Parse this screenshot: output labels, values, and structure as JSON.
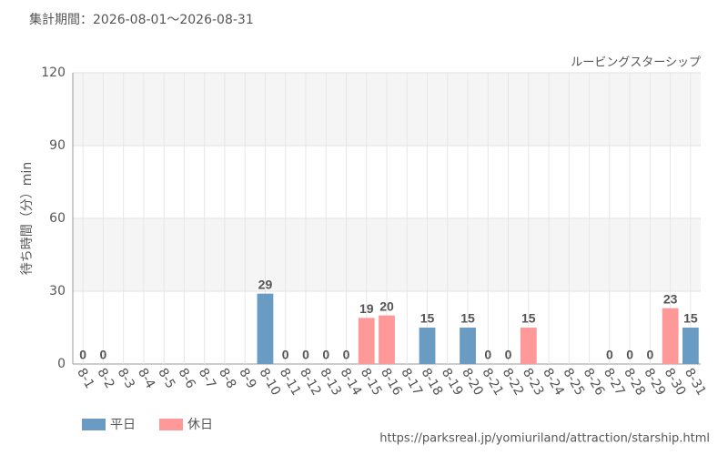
{
  "chart_data": {
    "type": "bar",
    "title": "集計期間：2026-08-01～2026-08-31",
    "subtitle": "ルービングスターシップ",
    "y_label": "待ち時間（分）min",
    "source": "https://parksreal.jp/yomiuriland/attraction/starship.html",
    "categories": [
      "8-1",
      "8-2",
      "8-3",
      "8-4",
      "8-5",
      "8-6",
      "8-7",
      "8-8",
      "8-9",
      "8-10",
      "8-11",
      "8-12",
      "8-13",
      "8-14",
      "8-15",
      "8-16",
      "8-17",
      "8-18",
      "8-19",
      "8-20",
      "8-21",
      "8-22",
      "8-23",
      "8-24",
      "8-25",
      "8-26",
      "8-27",
      "8-28",
      "8-29",
      "8-30",
      "8-31"
    ],
    "category_colors": [
      "#ff8080",
      "#ff8080",
      "#555555",
      "#555555",
      "#555555",
      "#555555",
      "#555555",
      "#ff8080",
      "#ff8080",
      "#555555",
      "#ff8080",
      "#555555",
      "#555555",
      "#555555",
      "#ff8080",
      "#ff8080",
      "#555555",
      "#555555",
      "#555555",
      "#555555",
      "#555555",
      "#ff8080",
      "#ff8080",
      "#555555",
      "#555555",
      "#555555",
      "#555555",
      "#555555",
      "#ff8080",
      "#ff8080",
      "#555555"
    ],
    "series": [
      {
        "name": "平日",
        "color": "#6a9bc3",
        "values": [
          null,
          null,
          null,
          null,
          null,
          null,
          null,
          null,
          null,
          29,
          null,
          0,
          0,
          0,
          null,
          null,
          null,
          15,
          null,
          15,
          0,
          null,
          null,
          null,
          null,
          null,
          0,
          0,
          null,
          null,
          15
        ]
      },
      {
        "name": "休日",
        "color": "#ff9999",
        "values": [
          0,
          0,
          null,
          null,
          null,
          null,
          null,
          null,
          null,
          null,
          0,
          null,
          null,
          null,
          19,
          20,
          null,
          null,
          null,
          null,
          null,
          0,
          15,
          null,
          null,
          null,
          null,
          null,
          0,
          23,
          null
        ]
      }
    ],
    "ylim": [
      0,
      120
    ],
    "yticks": [
      0,
      30,
      60,
      90,
      120
    ],
    "grid": true
  }
}
